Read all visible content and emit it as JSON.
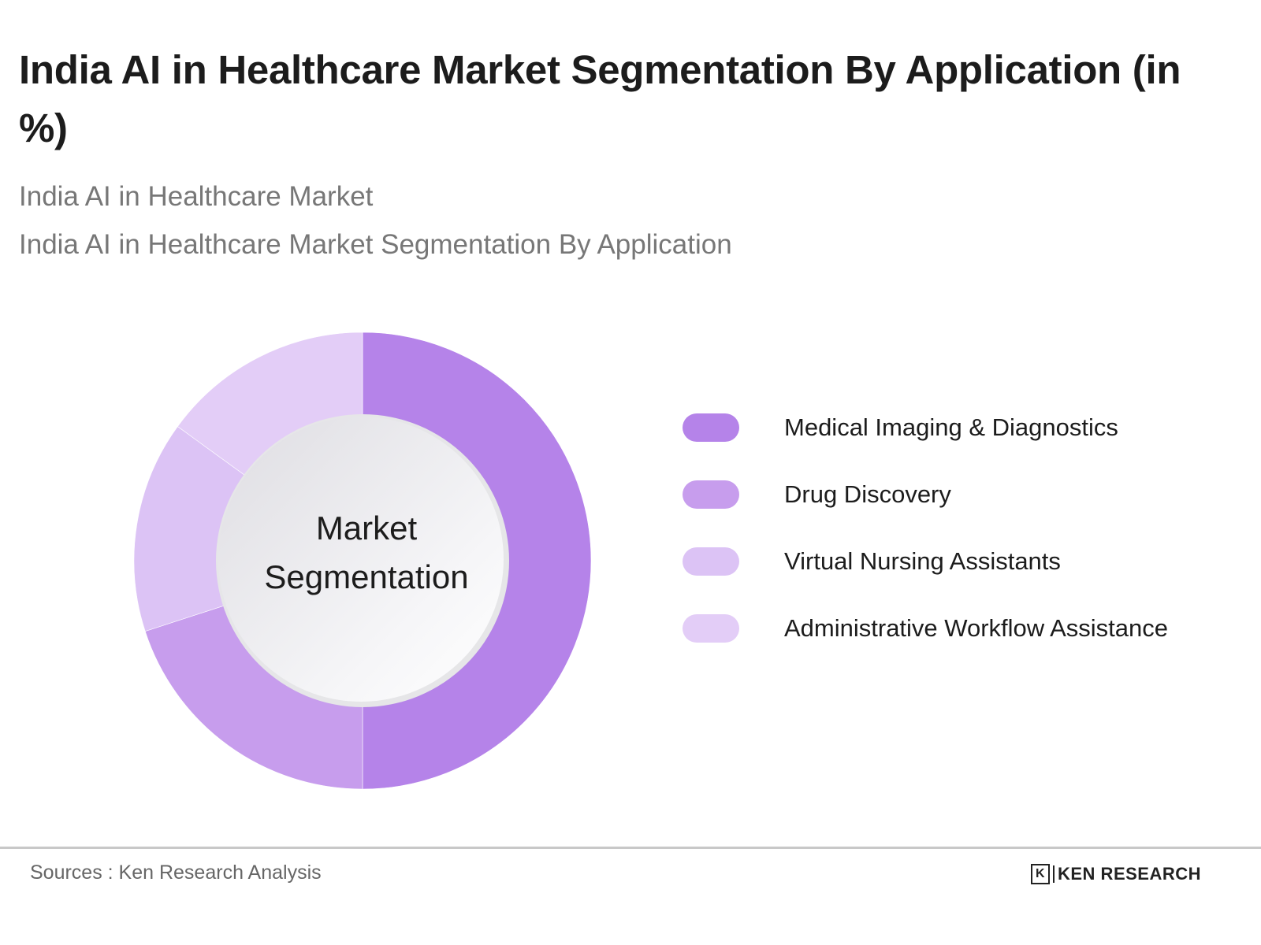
{
  "header": {
    "title": "India AI in Healthcare Market Segmentation By Application (in %)",
    "subtitle1": "India AI in Healthcare Market",
    "subtitle2": "India AI in Healthcare Market Segmentation By Application"
  },
  "center_label": {
    "line1": "Market",
    "line2": "Segmentation"
  },
  "legend": [
    {
      "label": "Medical Imaging & Diagnostics",
      "color": "#b583e9"
    },
    {
      "label": "Drug Discovery",
      "color": "#c79ded"
    },
    {
      "label": "Virtual Nursing Assistants",
      "color": "#dcc3f5"
    },
    {
      "label": "Administrative Workflow Assistance",
      "color": "#e3cdf7"
    }
  ],
  "footer": {
    "source": "Sources : Ken Research Analysis",
    "logo_text": "KEN RESEARCH",
    "logo_mark": "K"
  },
  "chart_data": {
    "type": "pie",
    "subtype": "donut",
    "title": "India AI in Healthcare Market Segmentation By Application (in %)",
    "center_text": "Market Segmentation",
    "categories": [
      "Medical Imaging & Diagnostics",
      "Drug Discovery",
      "Virtual Nursing Assistants",
      "Administrative Workflow Assistance"
    ],
    "values": [
      50,
      20,
      15,
      15
    ],
    "colors": [
      "#b583e9",
      "#c79ded",
      "#dcc3f5",
      "#e3cdf7"
    ],
    "legend_position": "right",
    "data_labels": false
  }
}
